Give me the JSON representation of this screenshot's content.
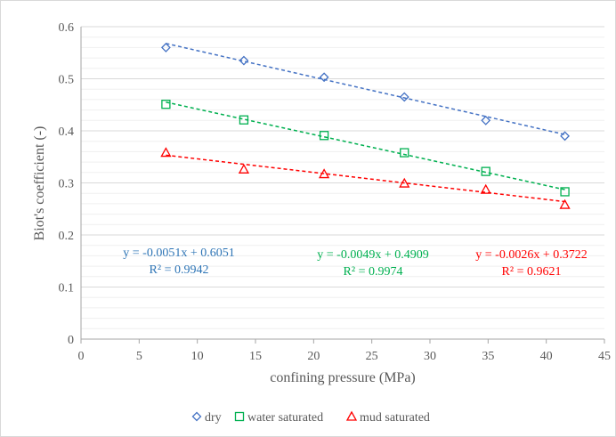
{
  "chart_data": {
    "type": "scatter",
    "xlabel": "confining pressure (MPa)",
    "ylabel": "Biot's coefficient (-)",
    "xlim": [
      0,
      45
    ],
    "ylim": [
      0,
      0.6
    ],
    "x_ticks": [
      0,
      5,
      10,
      15,
      20,
      25,
      30,
      35,
      40,
      45
    ],
    "y_ticks": [
      0,
      0.1,
      0.2,
      0.3,
      0.4,
      0.5,
      0.6
    ],
    "x_tick_labels": [
      "0",
      "5",
      "10",
      "15",
      "20",
      "25",
      "30",
      "35",
      "40",
      "45"
    ],
    "y_tick_labels": [
      "0",
      "0.1",
      "0.2",
      "0.3",
      "0.4",
      "0.5",
      "0.6"
    ],
    "grid": "horizontal major and minor lines",
    "legend_position": "bottom",
    "series": [
      {
        "name": "dry",
        "marker": "diamond",
        "color": "#4472c4",
        "x": [
          7.3,
          14.0,
          20.9,
          27.8,
          34.8,
          41.6
        ],
        "y": [
          0.56,
          0.535,
          0.503,
          0.465,
          0.42,
          0.39
        ],
        "trendline": {
          "slope": -0.0051,
          "intercept": 0.6051,
          "equation": "y = -0.0051x + 0.6051",
          "r2": "R² = 0.9942",
          "label_color": "#2e75b6"
        }
      },
      {
        "name": "water saturated",
        "marker": "square",
        "color": "#00b050",
        "x": [
          7.3,
          14.0,
          20.9,
          27.8,
          34.8,
          41.6
        ],
        "y": [
          0.451,
          0.421,
          0.391,
          0.358,
          0.322,
          0.283
        ],
        "trendline": {
          "slope": -0.0049,
          "intercept": 0.4909,
          "equation": "y = -0.0049x + 0.4909",
          "r2": "R² = 0.9974",
          "label_color": "#00b050"
        }
      },
      {
        "name": "mud saturated",
        "marker": "triangle",
        "color": "#ff0000",
        "x": [
          7.3,
          14.0,
          20.9,
          27.8,
          34.8,
          41.6
        ],
        "y": [
          0.358,
          0.326,
          0.317,
          0.299,
          0.287,
          0.258
        ],
        "trendline": {
          "slope": -0.0026,
          "intercept": 0.3722,
          "equation": "y = -0.0026x + 0.3722",
          "r2": "R² = 0.9621",
          "label_color": "#ff0000"
        }
      }
    ]
  }
}
